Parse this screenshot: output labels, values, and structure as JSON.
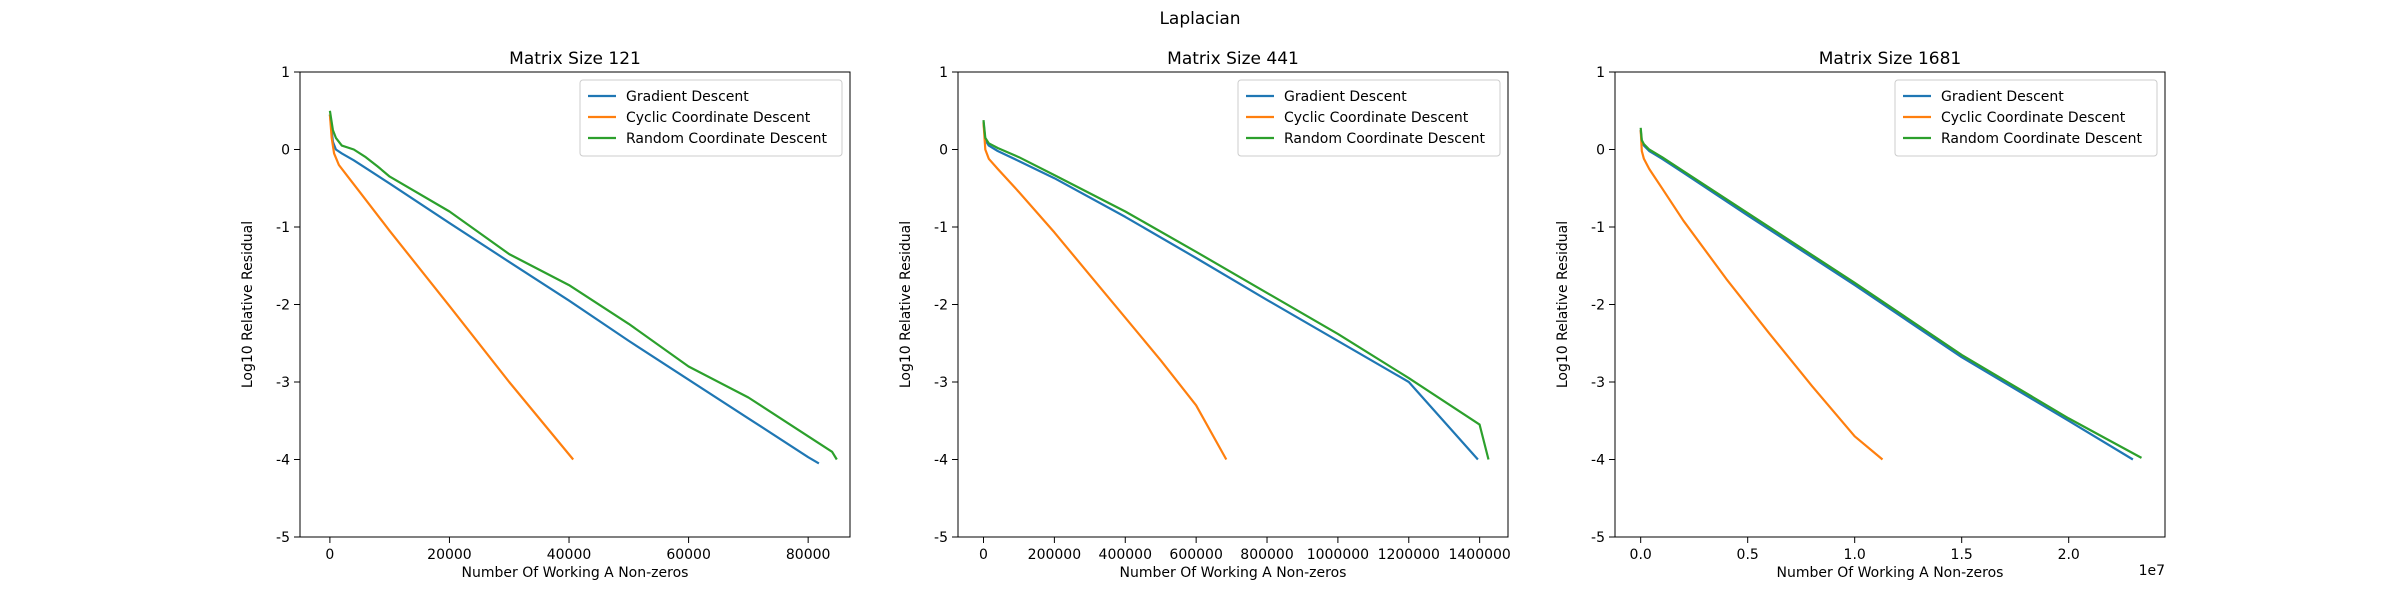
{
  "suptitle": "Laplacian",
  "colors": {
    "gradient": "#1f77b4",
    "cyclic": "#ff7f0e",
    "random": "#2ca02c"
  },
  "chart_data": [
    {
      "type": "line",
      "title": "Matrix Size 121",
      "xlabel": "Number Of Working A Non-zeros",
      "ylabel": "Log10 Relative Residual",
      "xlim": [
        -5000,
        87000
      ],
      "ylim": [
        -5,
        1
      ],
      "xticks": [
        0,
        20000,
        40000,
        60000,
        80000
      ],
      "xtick_labels": [
        "0",
        "20000",
        "40000",
        "60000",
        "80000"
      ],
      "yticks": [
        1,
        0,
        -1,
        -2,
        -3,
        -4,
        -5
      ],
      "xoffset_label": "",
      "legend_position": "upper right",
      "series": [
        {
          "name": "Gradient Descent",
          "color_key": "gradient",
          "x": [
            0,
            500,
            1000,
            2000,
            4000,
            6000,
            10000,
            20000,
            30000,
            40000,
            50000,
            60000,
            70000,
            80000,
            81800
          ],
          "y": [
            0.45,
            0.1,
            0.0,
            -0.05,
            -0.14,
            -0.24,
            -0.44,
            -0.95,
            -1.45,
            -1.95,
            -2.47,
            -2.97,
            -3.47,
            -3.97,
            -4.05
          ]
        },
        {
          "name": "Cyclic Coordinate Descent",
          "color_key": "cyclic",
          "x": [
            0,
            300,
            700,
            1500,
            3000,
            5000,
            10000,
            20000,
            30000,
            40700
          ],
          "y": [
            0.45,
            0.15,
            -0.05,
            -0.2,
            -0.35,
            -0.55,
            -1.05,
            -2.02,
            -3.0,
            -4.0
          ]
        },
        {
          "name": "Random Coordinate Descent",
          "color_key": "random",
          "x": [
            0,
            500,
            1000,
            2000,
            4000,
            6000,
            8000,
            10000,
            20000,
            30000,
            40000,
            50000,
            60000,
            70000,
            80000,
            84000,
            84800
          ],
          "y": [
            0.5,
            0.25,
            0.15,
            0.05,
            0.0,
            -0.1,
            -0.22,
            -0.35,
            -0.8,
            -1.35,
            -1.75,
            -2.25,
            -2.8,
            -3.2,
            -3.7,
            -3.9,
            -4.0
          ]
        }
      ]
    },
    {
      "type": "line",
      "title": "Matrix Size 441",
      "xlabel": "Number Of Working A Non-zeros",
      "ylabel": "Log10 Relative Residual",
      "xlim": [
        -72000,
        1480000
      ],
      "ylim": [
        -5,
        1
      ],
      "xticks": [
        0,
        200000,
        400000,
        600000,
        800000,
        1000000,
        1200000,
        1400000
      ],
      "xtick_labels": [
        "0",
        "200000",
        "400000",
        "600000",
        "800000",
        "1000000",
        "1200000",
        "1400000"
      ],
      "yticks": [
        1,
        0,
        -1,
        -2,
        -3,
        -4,
        -5
      ],
      "xoffset_label": "",
      "legend_position": "upper right",
      "series": [
        {
          "name": "Gradient Descent",
          "color_key": "gradient",
          "x": [
            0,
            5000,
            15000,
            40000,
            100000,
            200000,
            400000,
            600000,
            800000,
            1000000,
            1200000,
            1395000
          ],
          "y": [
            0.35,
            0.12,
            0.05,
            -0.02,
            -0.15,
            -0.37,
            -0.87,
            -1.4,
            -1.94,
            -2.47,
            -3.0,
            -4.0
          ]
        },
        {
          "name": "Cyclic Coordinate Descent",
          "color_key": "cyclic",
          "x": [
            0,
            5000,
            15000,
            40000,
            100000,
            200000,
            300000,
            400000,
            500000,
            600000,
            685000
          ],
          "y": [
            0.35,
            0.0,
            -0.12,
            -0.25,
            -0.55,
            -1.07,
            -1.62,
            -2.17,
            -2.72,
            -3.3,
            -4.0
          ]
        },
        {
          "name": "Random Coordinate Descent",
          "color_key": "random",
          "x": [
            0,
            5000,
            15000,
            40000,
            100000,
            200000,
            400000,
            600000,
            800000,
            1000000,
            1200000,
            1400000,
            1425000
          ],
          "y": [
            0.38,
            0.15,
            0.08,
            0.02,
            -0.1,
            -0.33,
            -0.8,
            -1.32,
            -1.85,
            -2.38,
            -2.95,
            -3.55,
            -4.0
          ]
        }
      ]
    },
    {
      "type": "line",
      "title": "Matrix Size 1681",
      "xlabel": "Number Of Working A Non-zeros",
      "ylabel": "Log10 Relative Residual",
      "xlim": [
        -1200000,
        24500000
      ],
      "ylim": [
        -5,
        1
      ],
      "xticks": [
        0,
        5000000,
        10000000,
        15000000,
        20000000
      ],
      "xtick_labels": [
        "0.0",
        "0.5",
        "1.0",
        "1.5",
        "2.0"
      ],
      "yticks": [
        1,
        0,
        -1,
        -2,
        -3,
        -4,
        -5
      ],
      "xoffset_label": "1e7",
      "legend_position": "upper right",
      "series": [
        {
          "name": "Gradient Descent",
          "color_key": "gradient",
          "x": [
            0,
            50000,
            150000,
            400000,
            1000000,
            2000000,
            5000000,
            10000000,
            15000000,
            20000000,
            23000000
          ],
          "y": [
            0.25,
            0.1,
            0.05,
            -0.02,
            -0.12,
            -0.3,
            -0.85,
            -1.75,
            -2.68,
            -3.5,
            -4.0
          ]
        },
        {
          "name": "Cyclic Coordinate Descent",
          "color_key": "cyclic",
          "x": [
            0,
            50000,
            150000,
            400000,
            1000000,
            2000000,
            4000000,
            6000000,
            8000000,
            10000000,
            11300000
          ],
          "y": [
            0.25,
            -0.02,
            -0.12,
            -0.25,
            -0.5,
            -0.92,
            -1.67,
            -2.37,
            -3.05,
            -3.7,
            -4.0
          ]
        },
        {
          "name": "Random Coordinate Descent",
          "color_key": "random",
          "x": [
            0,
            50000,
            150000,
            400000,
            1000000,
            2000000,
            5000000,
            10000000,
            15000000,
            20000000,
            23400000
          ],
          "y": [
            0.28,
            0.12,
            0.07,
            0.0,
            -0.1,
            -0.28,
            -0.82,
            -1.72,
            -2.65,
            -3.47,
            -3.98
          ]
        }
      ]
    }
  ]
}
